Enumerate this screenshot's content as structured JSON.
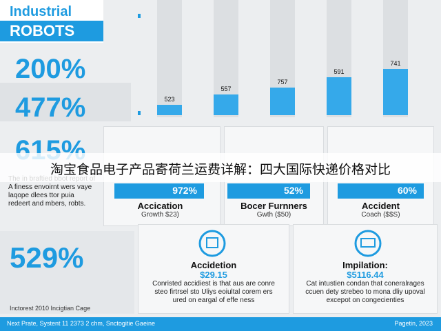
{
  "header": {
    "title_line1": "Industrial",
    "title_line2": "ROBOTS"
  },
  "stats": [
    "200%",
    "477%",
    "615%"
  ],
  "bar_labels": [
    "523",
    "557",
    "757",
    "591",
    "741"
  ],
  "banner": "淘宝食品电子产品寄荷兰运费详解：四大国际快递价格对比",
  "intro": "The in braftied bbot report of A finess envoirnt wers vaye laqope dlees ttor puia redeert and mbers, robts.",
  "cards": [
    {
      "value": "972%",
      "label": "Accication",
      "sub": "Growth $23)"
    },
    {
      "value": "52%",
      "label": "Bocer Furnners",
      "sub": "Gwth ($50)"
    },
    {
      "value": "60%",
      "label": "Accident",
      "sub": "Coach ($$S)"
    }
  ],
  "bottom": {
    "stat": "529%",
    "note": "Inctorest 2010 Incigtian Cage",
    "panels": [
      {
        "title": "Accidetion",
        "amount": "$29.15",
        "text": "Conristed accidiest is that aus are conre steo firtrsel sto Uliys eoiultal corem ers ured on eargal of effe ness"
      },
      {
        "title": "Impilation:",
        "amount": "$5116.44",
        "text": "Cat intustien condan that coneralrages ccuen dety strebeo to mona dliy upoval excepot on congecienties"
      }
    ]
  },
  "footer": {
    "left": "Next Prate, Systent 11 2373 2 chm, Snctogitie Gaeine",
    "right": "Pagetin, 2023"
  }
}
